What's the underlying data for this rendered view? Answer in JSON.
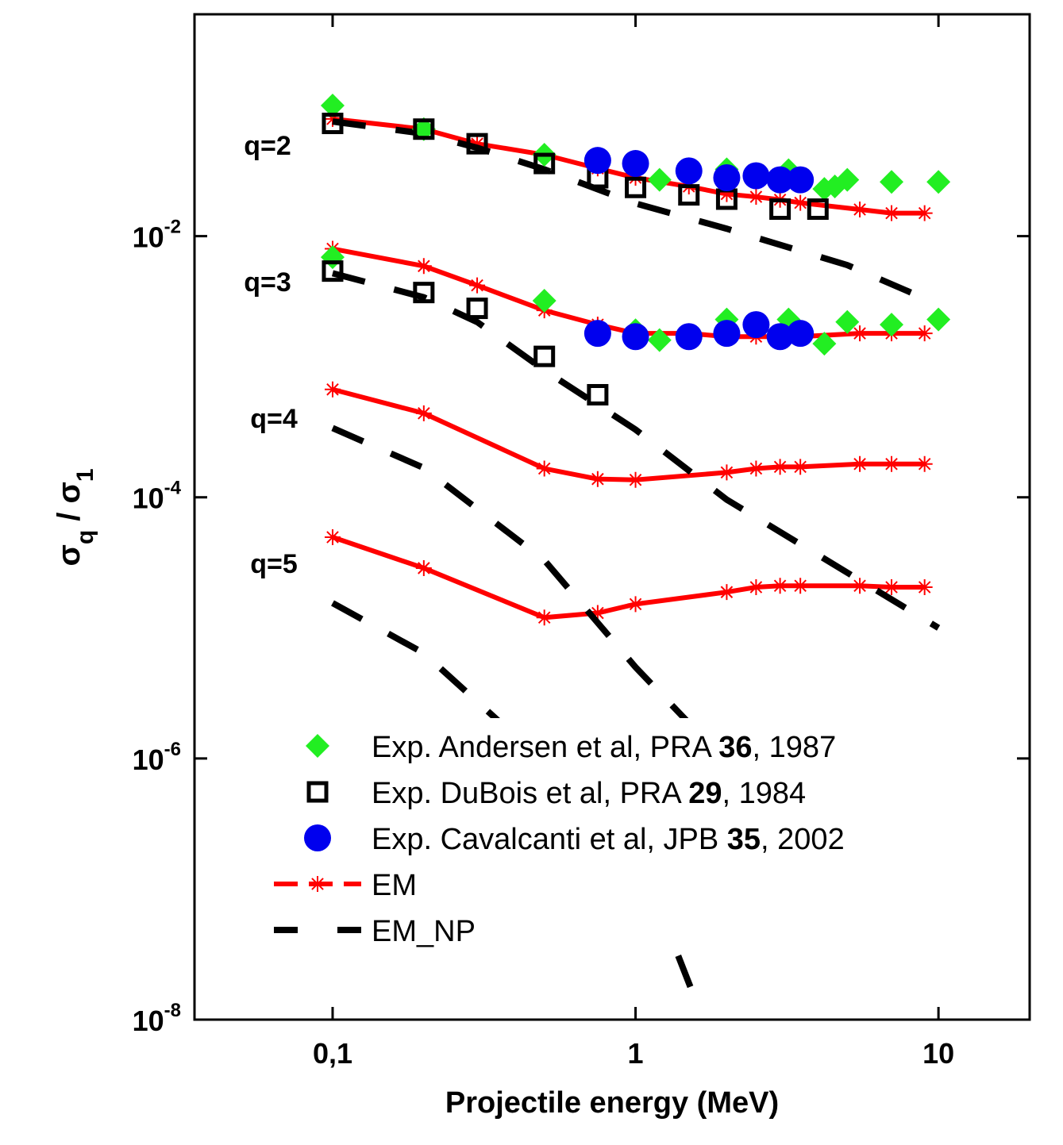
{
  "chart_data": {
    "type": "scatter-line",
    "x_label": "Projectile energy (MeV)",
    "y_label": "σq / σ1",
    "log_x": true,
    "log_y": true,
    "xlim": [
      0.035,
      20
    ],
    "ylim": [
      1e-08,
      0.5
    ],
    "xticks": [
      {
        "value": 0.1,
        "label": "0,1"
      },
      1,
      10
    ],
    "yticks": [
      {
        "value": 1e-08,
        "label": "10-8"
      },
      {
        "value": 1e-06,
        "label": "10-6"
      },
      {
        "value": 0.0001,
        "label": "10-4"
      },
      {
        "value": 0.01,
        "label": "10-2"
      }
    ],
    "annotations": [
      "q=2",
      "q=3",
      "q=4",
      "q=5"
    ],
    "series": [
      {
        "name": "Exp. Andersen et al, PRA 36, 1987",
        "color": "#22ee22",
        "marker": "diamond",
        "line": false,
        "x": [
          0.1,
          0.2,
          0.5,
          1.2,
          2,
          3.2,
          4.2,
          4.55,
          5,
          7,
          10,
          0.1,
          0.5,
          1,
          1.2,
          2,
          3.2,
          4.2,
          5,
          7,
          10
        ],
        "values": [
          0.1,
          0.066,
          0.042,
          0.027,
          0.0325,
          0.032,
          0.023,
          0.024,
          0.027,
          0.026,
          0.026,
          0.0069,
          0.0032,
          0.0019,
          0.0016,
          0.0023,
          0.0023,
          0.0015,
          0.0022,
          0.0021,
          0.0023
        ]
      },
      {
        "name": "Exp. DuBois et al, PRA 29, 1984",
        "color": "#000000",
        "marker": "square",
        "line": false,
        "x": [
          0.1,
          0.2,
          0.3,
          0.5,
          0.75,
          1,
          1.5,
          2,
          3,
          4,
          0.1,
          0.2,
          0.3,
          0.5,
          0.75
        ],
        "values": [
          0.073,
          0.066,
          0.051,
          0.036,
          0.028,
          0.0236,
          0.0207,
          0.0192,
          0.0161,
          0.0161,
          0.0054,
          0.0037,
          0.0028,
          0.0012,
          0.00061
        ]
      },
      {
        "name": "Exp. Cavalcanti et al, JPB 35, 2002",
        "color": "#0000ee",
        "marker": "circle",
        "line": false,
        "x": [
          0.75,
          1,
          1.5,
          2,
          2.5,
          3,
          3.5,
          0.75,
          1,
          1.5,
          2,
          2.5,
          3,
          3.5
        ],
        "values": [
          0.038,
          0.036,
          0.0316,
          0.028,
          0.029,
          0.027,
          0.027,
          0.0018,
          0.0017,
          0.0017,
          0.0018,
          0.0021,
          0.0017,
          0.0018
        ]
      },
      {
        "name": "EM",
        "color": "#ff0000",
        "marker": "asterisk",
        "line": true,
        "dashed": false,
        "x": [
          0.1,
          0.2,
          0.3,
          0.5,
          0.75,
          1,
          1.5,
          2,
          2.5,
          3,
          3.5,
          5.5,
          7,
          9,
          null,
          0.1,
          0.2,
          0.3,
          0.5,
          0.75,
          1,
          1.5,
          2,
          2.5,
          3,
          3.5,
          5.5,
          7,
          9,
          null,
          0.1,
          0.2,
          0.5,
          0.75,
          1,
          2,
          2.5,
          3,
          3.5,
          5.5,
          7,
          9,
          null,
          0.1,
          0.2,
          0.5,
          0.75,
          1,
          2,
          2.5,
          3,
          3.5,
          5.5,
          7,
          9
        ],
        "values": [
          0.079,
          0.066,
          0.051,
          0.042,
          0.033,
          0.028,
          0.024,
          0.021,
          0.02,
          0.019,
          0.018,
          0.016,
          0.015,
          0.015,
          null,
          0.008,
          0.0059,
          0.0042,
          0.0027,
          0.0021,
          0.0018,
          0.0018,
          0.0017,
          0.0017,
          0.0017,
          0.0017,
          0.0018,
          0.0018,
          0.0018,
          null,
          0.00067,
          0.00044,
          0.000166,
          0.000138,
          0.000136,
          0.000155,
          0.000166,
          0.000171,
          0.000171,
          0.00018,
          0.00018,
          0.00018,
          null,
          4.95e-05,
          2.87e-05,
          1.2e-05,
          1.3e-05,
          1.52e-05,
          1.88e-05,
          2.05e-05,
          2.1e-05,
          2.1e-05,
          2.1e-05,
          2.05e-05,
          2.05e-05
        ]
      },
      {
        "name": "EM_NP",
        "color": "#000000",
        "marker": "none",
        "line": true,
        "dashed": true,
        "x": [
          0.1,
          0.2,
          0.3,
          0.5,
          1,
          2,
          5,
          10,
          null,
          0.1,
          0.2,
          0.3,
          0.5,
          1,
          2,
          10,
          null,
          0.1,
          0.2,
          0.5,
          1,
          2,
          10,
          null,
          0.1,
          0.2,
          0.5,
          1,
          1.6
        ],
        "values": [
          0.0755,
          0.061,
          0.0475,
          0.0325,
          0.0178,
          0.0114,
          0.006,
          0.003,
          null,
          0.0052,
          0.0034,
          0.0022,
          0.00094,
          0.00033,
          9.6e-05,
          1e-05,
          null,
          0.000339,
          0.000168,
          3.3e-05,
          5e-06,
          9.3e-07,
          4.2e-08,
          null,
          1.55e-05,
          6.4e-06,
          9.3e-07,
          2.1e-07,
          1.3e-08
        ]
      }
    ]
  }
}
